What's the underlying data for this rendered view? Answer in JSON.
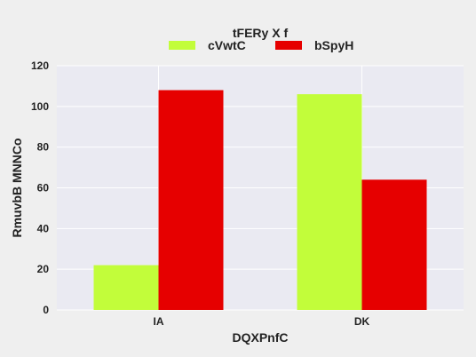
{
  "chart_data": {
    "type": "bar",
    "categories": [
      "IA",
      "DK"
    ],
    "series": [
      {
        "name": "cVwtC",
        "values": [
          22,
          106
        ],
        "color": "#c2fd3a"
      },
      {
        "name": "bSpyH",
        "values": [
          108,
          64
        ],
        "color": "#e60000"
      }
    ],
    "legend_title": "tFERy X f",
    "legend_position": "top-center",
    "xlabel": "DQXPnfC",
    "ylabel": "RmuvbB MNNCo",
    "ylim": [
      0,
      120
    ],
    "yticks": [
      0,
      20,
      40,
      60,
      80,
      100,
      120
    ],
    "grid": true,
    "background_color": "#eaeaf2",
    "page_color": "#efefef"
  }
}
